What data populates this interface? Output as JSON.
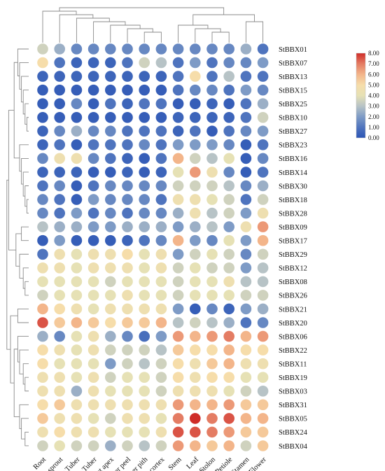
{
  "chart_data": {
    "type": "heatmap",
    "title": "",
    "xlabel": "",
    "ylabel": "",
    "columns": [
      "Root",
      "Tuber sprout",
      "Young Tuber",
      "Mature Tuber",
      "Shoot apex",
      "Tuber peel",
      "Tuber pith",
      "Tuber cortex",
      "Stem",
      "Leaf",
      "Stolon",
      "Petiole",
      "Stamen",
      "Flower"
    ],
    "rows": [
      "StBBX01",
      "StBBX07",
      "StBBX13",
      "StBBX15",
      "StBBX25",
      "StBBX10",
      "StBBX27",
      "StBBX23",
      "StBBX16",
      "StBBX14",
      "StBBX30",
      "StBBX18",
      "StBBX28",
      "StBBX09",
      "StBBX17",
      "StBBX29",
      "StBBX12",
      "StBBX08",
      "StBBX26",
      "StBBX21",
      "StBBX20",
      "StBBX06",
      "StBBX22",
      "StBBX11",
      "StBBX19",
      "StBBX03",
      "StBBX31",
      "StBBX05",
      "StBBX24",
      "StBBX04"
    ],
    "values": [
      [
        3.5,
        2.5,
        1.5,
        1.5,
        1.5,
        1.5,
        1.5,
        1.5,
        1.5,
        1.5,
        1.5,
        1.5,
        2.5,
        1.0
      ],
      [
        5.0,
        1.0,
        0.5,
        0.5,
        0.5,
        1.0,
        3.5,
        3.0,
        1.0,
        2.0,
        1.0,
        1.5,
        1.5,
        2.0
      ],
      [
        0.5,
        0.5,
        0.5,
        0.5,
        0.5,
        0.5,
        0.5,
        0.5,
        1.0,
        5.0,
        1.0,
        3.0,
        1.0,
        1.0
      ],
      [
        0.3,
        0.3,
        0.3,
        0.3,
        0.3,
        0.3,
        0.3,
        0.3,
        1.0,
        1.5,
        1.5,
        1.0,
        2.0,
        1.5
      ],
      [
        0.3,
        0.3,
        1.5,
        0.3,
        1.0,
        0.5,
        1.0,
        1.0,
        0.3,
        0.3,
        0.5,
        0.3,
        1.0,
        2.5
      ],
      [
        0.3,
        0.3,
        0.3,
        0.3,
        0.3,
        0.3,
        0.3,
        0.3,
        0.5,
        0.5,
        0.5,
        0.5,
        1.0,
        3.5
      ],
      [
        0.5,
        1.5,
        2.5,
        1.5,
        1.5,
        1.0,
        1.0,
        1.0,
        0.5,
        1.0,
        0.3,
        1.0,
        1.5,
        2.0
      ],
      [
        0.5,
        1.0,
        0.3,
        1.0,
        1.0,
        1.0,
        1.5,
        1.0,
        2.0,
        2.0,
        2.0,
        1.5,
        0.3,
        1.0
      ],
      [
        1.5,
        4.5,
        4.5,
        1.5,
        1.0,
        0.5,
        0.3,
        1.0,
        6.0,
        3.5,
        3.0,
        4.0,
        0.3,
        1.5
      ],
      [
        0.5,
        0.5,
        0.5,
        0.3,
        0.3,
        0.5,
        0.3,
        0.5,
        4.0,
        6.5,
        4.5,
        1.5,
        0.3,
        1.0
      ],
      [
        1.0,
        1.5,
        0.3,
        1.0,
        1.5,
        1.5,
        1.5,
        1.5,
        3.5,
        3.5,
        3.5,
        3.0,
        1.5,
        2.5
      ],
      [
        1.5,
        1.0,
        0.3,
        2.0,
        1.5,
        1.5,
        1.5,
        1.0,
        4.5,
        4.5,
        4.0,
        3.5,
        1.0,
        3.5
      ],
      [
        1.5,
        1.0,
        2.0,
        1.0,
        1.5,
        1.0,
        1.5,
        1.5,
        2.5,
        4.5,
        3.0,
        3.5,
        2.0,
        4.5
      ],
      [
        3.0,
        2.5,
        2.5,
        2.0,
        2.0,
        2.5,
        2.5,
        2.5,
        2.0,
        2.5,
        3.0,
        2.0,
        4.5,
        6.5
      ],
      [
        0.3,
        2.0,
        0.3,
        0.3,
        0.3,
        0.5,
        1.0,
        1.5,
        6.0,
        2.0,
        1.5,
        4.0,
        2.0,
        6.0
      ],
      [
        1.0,
        4.5,
        4.0,
        4.5,
        4.5,
        5.0,
        4.0,
        4.5,
        2.0,
        3.5,
        4.0,
        3.5,
        1.5,
        3.5
      ],
      [
        4.5,
        4.5,
        4.0,
        4.5,
        4.5,
        4.5,
        4.0,
        4.5,
        3.5,
        4.0,
        3.5,
        3.5,
        2.0,
        3.0
      ],
      [
        4.0,
        4.0,
        4.0,
        4.0,
        3.5,
        4.0,
        4.0,
        4.0,
        3.5,
        4.0,
        4.0,
        4.5,
        3.0,
        3.0
      ],
      [
        3.5,
        4.0,
        4.0,
        4.0,
        4.0,
        4.5,
        4.0,
        4.0,
        3.5,
        4.0,
        4.0,
        4.0,
        3.5,
        3.5
      ],
      [
        6.0,
        5.0,
        4.5,
        4.0,
        4.5,
        4.5,
        4.5,
        4.5,
        2.0,
        0.3,
        1.5,
        0.5,
        2.0,
        2.5
      ],
      [
        7.5,
        5.5,
        6.0,
        5.5,
        5.0,
        5.5,
        5.5,
        6.0,
        3.0,
        3.5,
        3.0,
        2.5,
        1.0,
        1.5
      ],
      [
        2.5,
        1.5,
        4.0,
        4.5,
        2.5,
        1.5,
        0.8,
        2.0,
        6.5,
        6.0,
        6.5,
        7.0,
        6.0,
        6.5
      ],
      [
        5.0,
        4.5,
        4.0,
        4.5,
        3.5,
        3.5,
        3.5,
        3.0,
        5.5,
        5.0,
        5.0,
        6.0,
        5.0,
        5.0
      ],
      [
        5.0,
        4.0,
        4.0,
        4.0,
        2.0,
        3.5,
        3.0,
        3.5,
        5.0,
        4.5,
        5.5,
        6.0,
        4.5,
        4.5
      ],
      [
        4.5,
        4.5,
        4.0,
        4.5,
        3.5,
        4.0,
        4.0,
        3.5,
        5.0,
        4.5,
        5.0,
        5.0,
        4.0,
        4.0
      ],
      [
        4.5,
        4.5,
        2.5,
        4.5,
        4.0,
        4.0,
        4.0,
        3.5,
        4.5,
        4.5,
        4.5,
        4.0,
        3.5,
        3.0
      ],
      [
        5.0,
        5.5,
        4.5,
        4.5,
        4.5,
        4.5,
        4.5,
        4.5,
        6.5,
        6.0,
        6.0,
        6.5,
        5.5,
        5.5
      ],
      [
        5.5,
        4.5,
        4.5,
        4.0,
        3.5,
        4.5,
        4.5,
        4.0,
        7.0,
        8.0,
        7.0,
        7.5,
        6.0,
        6.0
      ],
      [
        4.5,
        5.0,
        4.5,
        4.5,
        4.0,
        4.0,
        4.0,
        4.5,
        7.5,
        7.5,
        7.0,
        6.5,
        5.5,
        5.5
      ],
      [
        3.5,
        4.0,
        3.5,
        3.5,
        2.5,
        3.5,
        3.0,
        3.5,
        6.5,
        6.0,
        5.5,
        6.0,
        3.5,
        5.5
      ]
    ],
    "color_scale": {
      "min": 0,
      "max": 8,
      "ticks": [
        "0.00",
        "1.00",
        "2.00",
        "3.00",
        "4.00",
        "5.00",
        "6.00",
        "7.00",
        "8.00"
      ],
      "colors": [
        "#2b55b5",
        "#4f74be",
        "#7e9bc6",
        "#b7c3c6",
        "#e6e1b5",
        "#f6ddaa",
        "#f3b58a",
        "#e47c63",
        "#cf2c28"
      ]
    },
    "grid": false,
    "legend_position": "top-right"
  }
}
